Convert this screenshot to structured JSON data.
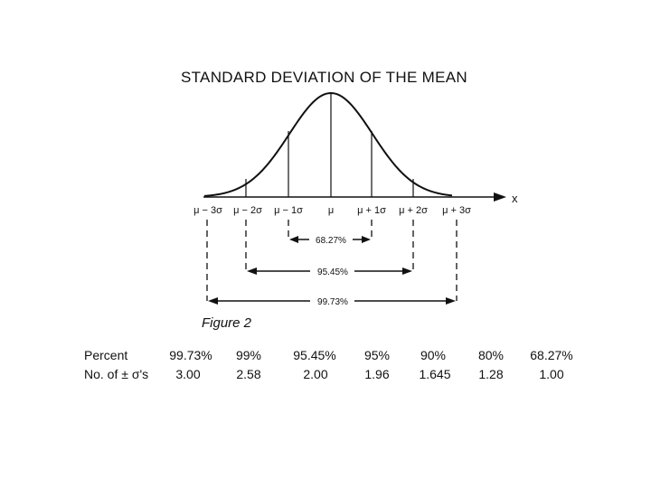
{
  "figure": {
    "title": "STANDARD DEVIATION OF THE MEAN",
    "axis_label": "x",
    "tick_labels": [
      "μ − 3σ",
      "μ − 2σ",
      "μ − 1σ",
      "μ",
      "μ + 1σ",
      "μ + 2σ",
      "μ + 3σ"
    ],
    "ranges": [
      {
        "label": "68.27%",
        "from_sigma": -1,
        "to_sigma": 1
      },
      {
        "label": "95.45%",
        "from_sigma": -2,
        "to_sigma": 2
      },
      {
        "label": "99.73%",
        "from_sigma": -3,
        "to_sigma": 3
      }
    ],
    "caption": "Figure 2"
  },
  "table": {
    "row_labels": [
      "Percent",
      "No. of ± σ's"
    ],
    "percent": [
      "99.73%",
      "99%",
      "95.45%",
      "95%",
      "90%",
      "80%",
      "68.27%"
    ],
    "sigmas": [
      "3.00",
      "2.58",
      "2.00",
      "1.96",
      "1.645",
      "1.28",
      "1.00"
    ]
  }
}
